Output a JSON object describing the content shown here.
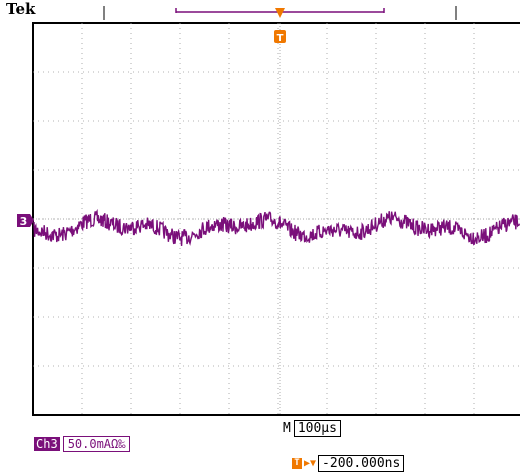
{
  "header": {
    "brand": "Tek"
  },
  "markers": {
    "trigger_letter": "T",
    "channel_marker": "3"
  },
  "timebase": {
    "prefix": "M",
    "value": "100µs"
  },
  "channel": {
    "badge": "Ch3",
    "scale": "50.0mAΩ‰"
  },
  "trigger": {
    "letter": "T",
    "position": "-200.000ns"
  },
  "colors": {
    "channel3": "#7a0f7a",
    "trigger": "#f07800",
    "grid": "#9a9a9a"
  },
  "icons": {
    "trigger_arrow": "arrow-right-down-icon"
  }
}
